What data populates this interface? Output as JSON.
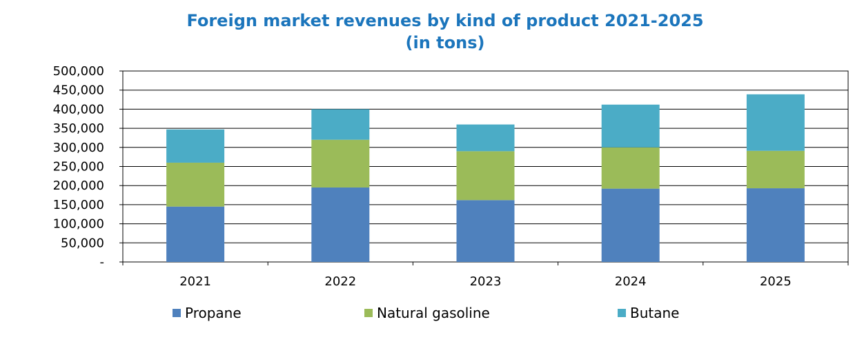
{
  "chart_data": {
    "type": "bar",
    "stacked": true,
    "title_line1": "Foreign market revenues by kind of product 2021-2025",
    "title_line2": "(in tons)",
    "categories": [
      "2021",
      "2022",
      "2023",
      "2024",
      "2025"
    ],
    "series": [
      {
        "name": "Propane",
        "color": "#4f81bd",
        "values": [
          145000,
          195000,
          162000,
          192000,
          193000
        ]
      },
      {
        "name": "Natural gasoline",
        "color": "#9bbb59",
        "values": [
          115000,
          125000,
          128000,
          108000,
          98000
        ]
      },
      {
        "name": "Butane",
        "color": "#4bacc6",
        "values": [
          87000,
          80000,
          70000,
          112000,
          148000
        ]
      }
    ],
    "ylim": [
      0,
      500000
    ],
    "yticks": [
      0,
      50000,
      100000,
      150000,
      200000,
      250000,
      300000,
      350000,
      400000,
      450000,
      500000
    ],
    "ytick_labels": [
      "-",
      "50,000",
      "100,000",
      "150,000",
      "200,000",
      "250,000",
      "300,000",
      "350,000",
      "400,000",
      "450,000",
      "500,000"
    ],
    "grid": true,
    "legend_position": "bottom"
  }
}
